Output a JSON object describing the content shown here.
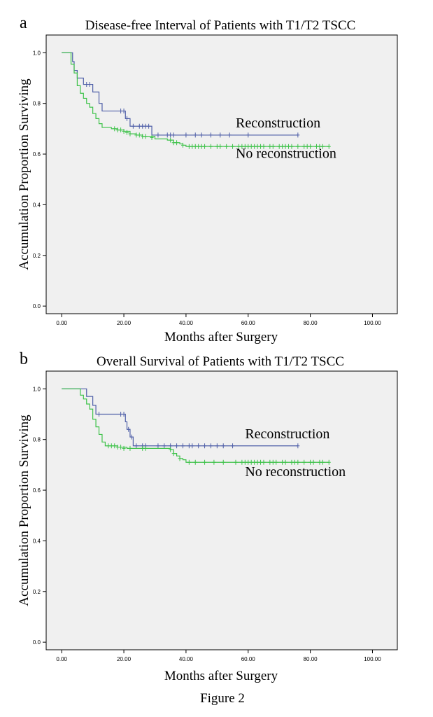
{
  "figure": {
    "caption": "Figure 2"
  },
  "chart_data": [
    {
      "type": "line",
      "panel": "a",
      "title": "Disease-free Interval of Patients with T1/T2 TSCC",
      "xlabel": "Months after Surgery",
      "ylabel": "Accumulation Proportion Surviving",
      "xlim": [
        -5,
        108
      ],
      "ylim": [
        -0.03,
        1.07
      ],
      "x_ticks": [
        0,
        20,
        40,
        60,
        80,
        100
      ],
      "x_tick_labels": [
        "0.00",
        "20.00",
        "40.00",
        "60.00",
        "80.00",
        "100.00"
      ],
      "y_ticks": [
        0.0,
        0.2,
        0.4,
        0.6,
        0.8,
        1.0
      ],
      "y_tick_labels": [
        "0.0",
        "0.2",
        "0.4",
        "0.6",
        "0.8",
        "1.0"
      ],
      "grid": false,
      "series": [
        {
          "name": "Reconstruction",
          "color": "#4f5fa8",
          "label_at": [
            56,
            0.705
          ],
          "steps": [
            [
              0,
              1.0
            ],
            [
              3,
              1.0
            ],
            [
              3.5,
              0.965
            ],
            [
              4,
              0.93
            ],
            [
              5,
              0.9
            ],
            [
              7,
              0.875
            ],
            [
              10,
              0.845
            ],
            [
              12,
              0.8
            ],
            [
              13,
              0.77
            ],
            [
              19,
              0.77
            ],
            [
              20.5,
              0.74
            ],
            [
              22,
              0.71
            ],
            [
              29,
              0.71
            ],
            [
              29,
              0.675
            ],
            [
              76,
              0.675
            ]
          ],
          "censored": [
            [
              8,
              0.875
            ],
            [
              9,
              0.875
            ],
            [
              19,
              0.77
            ],
            [
              20,
              0.77
            ],
            [
              21,
              0.74
            ],
            [
              23,
              0.71
            ],
            [
              25,
              0.71
            ],
            [
              26,
              0.71
            ],
            [
              27,
              0.71
            ],
            [
              28,
              0.71
            ],
            [
              31,
              0.675
            ],
            [
              34,
              0.675
            ],
            [
              35,
              0.675
            ],
            [
              36,
              0.675
            ],
            [
              40,
              0.675
            ],
            [
              43,
              0.675
            ],
            [
              45,
              0.675
            ],
            [
              48,
              0.675
            ],
            [
              51,
              0.675
            ],
            [
              54,
              0.675
            ],
            [
              60,
              0.675
            ],
            [
              76,
              0.675
            ]
          ]
        },
        {
          "name": "No reconstruction",
          "color": "#3ec24a",
          "label_at": [
            56,
            0.585
          ],
          "steps": [
            [
              0,
              1.0
            ],
            [
              2,
              1.0
            ],
            [
              3,
              0.955
            ],
            [
              4,
              0.92
            ],
            [
              5,
              0.87
            ],
            [
              6,
              0.84
            ],
            [
              7,
              0.82
            ],
            [
              8,
              0.8
            ],
            [
              9,
              0.785
            ],
            [
              10,
              0.76
            ],
            [
              11,
              0.74
            ],
            [
              12,
              0.72
            ],
            [
              13,
              0.705
            ],
            [
              16,
              0.7
            ],
            [
              18,
              0.695
            ],
            [
              20,
              0.69
            ],
            [
              22,
              0.68
            ],
            [
              24,
              0.675
            ],
            [
              26,
              0.67
            ],
            [
              30,
              0.66
            ],
            [
              34,
              0.655
            ],
            [
              36,
              0.645
            ],
            [
              38,
              0.64
            ],
            [
              39,
              0.635
            ],
            [
              40,
              0.63
            ],
            [
              86,
              0.63
            ]
          ],
          "censored": [
            [
              17,
              0.7
            ],
            [
              18,
              0.695
            ],
            [
              19,
              0.695
            ],
            [
              20,
              0.69
            ],
            [
              21,
              0.685
            ],
            [
              22,
              0.68
            ],
            [
              24,
              0.675
            ],
            [
              25,
              0.675
            ],
            [
              26,
              0.67
            ],
            [
              27,
              0.67
            ],
            [
              29,
              0.665
            ],
            [
              35,
              0.655
            ],
            [
              36,
              0.645
            ],
            [
              37,
              0.645
            ],
            [
              39,
              0.635
            ],
            [
              41,
              0.63
            ],
            [
              42,
              0.63
            ],
            [
              43,
              0.63
            ],
            [
              44,
              0.63
            ],
            [
              45,
              0.63
            ],
            [
              46,
              0.63
            ],
            [
              48,
              0.63
            ],
            [
              50,
              0.63
            ],
            [
              51,
              0.63
            ],
            [
              53,
              0.63
            ],
            [
              55,
              0.63
            ],
            [
              57,
              0.63
            ],
            [
              58,
              0.63
            ],
            [
              59,
              0.63
            ],
            [
              60,
              0.63
            ],
            [
              61,
              0.63
            ],
            [
              62,
              0.63
            ],
            [
              63,
              0.63
            ],
            [
              64,
              0.63
            ],
            [
              65,
              0.63
            ],
            [
              67,
              0.63
            ],
            [
              68,
              0.63
            ],
            [
              70,
              0.63
            ],
            [
              71,
              0.63
            ],
            [
              72,
              0.63
            ],
            [
              73,
              0.63
            ],
            [
              74,
              0.63
            ],
            [
              76,
              0.63
            ],
            [
              78,
              0.63
            ],
            [
              79,
              0.63
            ],
            [
              80,
              0.63
            ],
            [
              82,
              0.63
            ],
            [
              83,
              0.63
            ],
            [
              84,
              0.63
            ],
            [
              86,
              0.63
            ]
          ]
        }
      ]
    },
    {
      "type": "line",
      "panel": "b",
      "title": "Overall Survival of Patients with T1/T2 TSCC",
      "xlabel": "Months after Surgery",
      "ylabel": "Accumulation Proportion Surviving",
      "xlim": [
        -5,
        108
      ],
      "ylim": [
        -0.03,
        1.07
      ],
      "x_ticks": [
        0,
        20,
        40,
        60,
        80,
        100
      ],
      "x_tick_labels": [
        "0.00",
        "20.00",
        "40.00",
        "60.00",
        "80.00",
        "100.00"
      ],
      "y_ticks": [
        0.0,
        0.2,
        0.4,
        0.6,
        0.8,
        1.0
      ],
      "y_tick_labels": [
        "0.0",
        "0.2",
        "0.4",
        "0.6",
        "0.8",
        "1.0"
      ],
      "grid": false,
      "series": [
        {
          "name": "Reconstruction",
          "color": "#4f5fa8",
          "label_at": [
            59,
            0.805
          ],
          "steps": [
            [
              0,
              1.0
            ],
            [
              7,
              1.0
            ],
            [
              8,
              0.97
            ],
            [
              10,
              0.935
            ],
            [
              11,
              0.9
            ],
            [
              20,
              0.9
            ],
            [
              20.5,
              0.87
            ],
            [
              21,
              0.84
            ],
            [
              22,
              0.81
            ],
            [
              23,
              0.775
            ],
            [
              76,
              0.775
            ]
          ],
          "censored": [
            [
              12,
              0.9
            ],
            [
              19,
              0.9
            ],
            [
              20,
              0.9
            ],
            [
              21.5,
              0.84
            ],
            [
              22.5,
              0.81
            ],
            [
              24,
              0.775
            ],
            [
              26,
              0.775
            ],
            [
              27,
              0.775
            ],
            [
              31,
              0.775
            ],
            [
              33,
              0.775
            ],
            [
              35,
              0.775
            ],
            [
              37,
              0.775
            ],
            [
              39,
              0.775
            ],
            [
              41,
              0.775
            ],
            [
              42,
              0.775
            ],
            [
              44,
              0.775
            ],
            [
              46,
              0.775
            ],
            [
              48,
              0.775
            ],
            [
              50,
              0.775
            ],
            [
              52,
              0.775
            ],
            [
              55,
              0.775
            ],
            [
              76,
              0.775
            ]
          ]
        },
        {
          "name": "No reconstruction",
          "color": "#3ec24a",
          "label_at": [
            59,
            0.655
          ],
          "steps": [
            [
              0,
              1.0
            ],
            [
              5,
              1.0
            ],
            [
              6,
              0.975
            ],
            [
              7,
              0.96
            ],
            [
              8,
              0.94
            ],
            [
              9,
              0.92
            ],
            [
              10,
              0.88
            ],
            [
              11,
              0.85
            ],
            [
              12,
              0.82
            ],
            [
              13,
              0.79
            ],
            [
              14,
              0.775
            ],
            [
              17,
              0.775
            ],
            [
              18,
              0.77
            ],
            [
              21,
              0.765
            ],
            [
              34,
              0.765
            ],
            [
              35,
              0.76
            ],
            [
              36,
              0.745
            ],
            [
              37,
              0.735
            ],
            [
              38,
              0.725
            ],
            [
              39,
              0.72
            ],
            [
              40,
              0.71
            ],
            [
              86,
              0.71
            ]
          ],
          "censored": [
            [
              15,
              0.775
            ],
            [
              16,
              0.775
            ],
            [
              17,
              0.775
            ],
            [
              18,
              0.77
            ],
            [
              19,
              0.77
            ],
            [
              20,
              0.765
            ],
            [
              22,
              0.765
            ],
            [
              26,
              0.765
            ],
            [
              27,
              0.765
            ],
            [
              35,
              0.76
            ],
            [
              36,
              0.745
            ],
            [
              38,
              0.725
            ],
            [
              41,
              0.71
            ],
            [
              43,
              0.71
            ],
            [
              46,
              0.71
            ],
            [
              49,
              0.71
            ],
            [
              52,
              0.71
            ],
            [
              56,
              0.71
            ],
            [
              58,
              0.71
            ],
            [
              59,
              0.71
            ],
            [
              60,
              0.71
            ],
            [
              61,
              0.71
            ],
            [
              62,
              0.71
            ],
            [
              63,
              0.71
            ],
            [
              64,
              0.71
            ],
            [
              65,
              0.71
            ],
            [
              67,
              0.71
            ],
            [
              68,
              0.71
            ],
            [
              69,
              0.71
            ],
            [
              71,
              0.71
            ],
            [
              72,
              0.71
            ],
            [
              74,
              0.71
            ],
            [
              75,
              0.71
            ],
            [
              76,
              0.71
            ],
            [
              78,
              0.71
            ],
            [
              80,
              0.71
            ],
            [
              81,
              0.71
            ],
            [
              83,
              0.71
            ],
            [
              84,
              0.71
            ],
            [
              86,
              0.71
            ]
          ]
        }
      ]
    }
  ]
}
